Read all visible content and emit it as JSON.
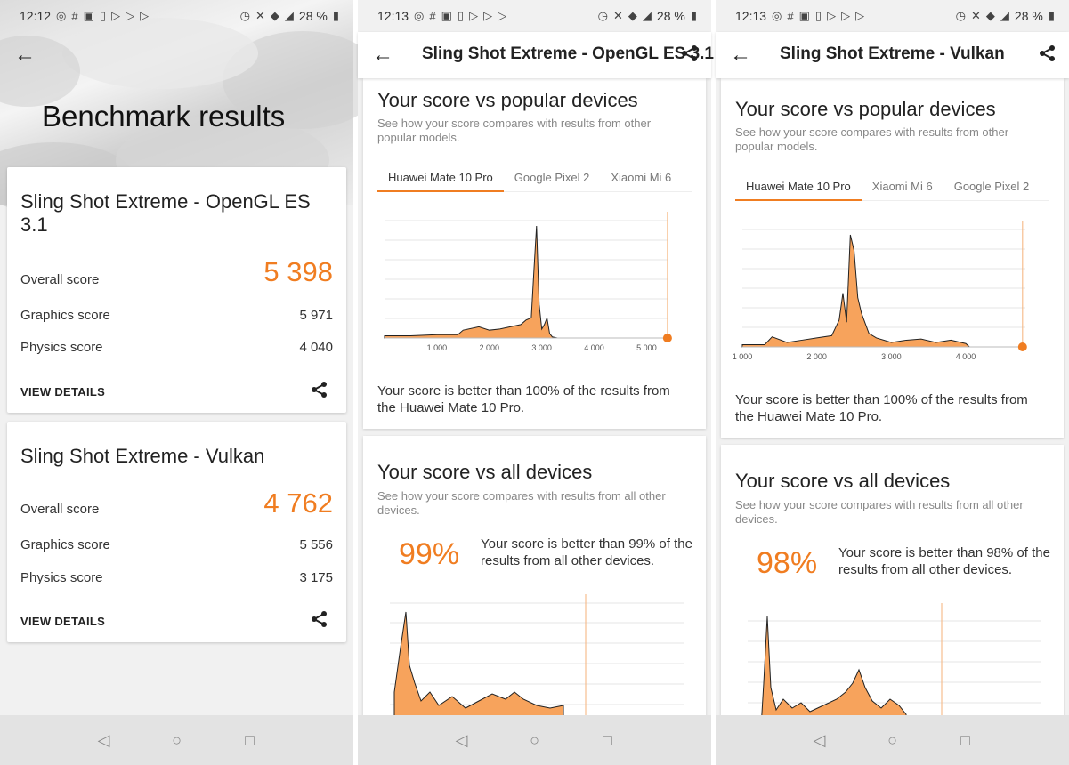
{
  "screens": [
    {
      "status": {
        "time": "12:12",
        "battery": "28 %"
      },
      "title": "Benchmark results",
      "cards": [
        {
          "title": "Sling Shot Extreme - OpenGL ES 3.1",
          "overall_label": "Overall score",
          "overall_value": "5 398",
          "graphics_label": "Graphics score",
          "graphics_value": "5 971",
          "physics_label": "Physics score",
          "physics_value": "4 040",
          "view_details": "VIEW DETAILS"
        },
        {
          "title": "Sling Shot Extreme - Vulkan",
          "overall_label": "Overall score",
          "overall_value": "4 762",
          "graphics_label": "Graphics score",
          "graphics_value": "5 556",
          "physics_label": "Physics score",
          "physics_value": "3 175",
          "view_details": "VIEW DETAILS"
        }
      ]
    },
    {
      "status": {
        "time": "12:13",
        "battery": "28 %"
      },
      "appbar_title": "Sling Shot Extreme - OpenGL ES 3.1",
      "popular": {
        "heading": "Your score vs popular devices",
        "subtitle": "See how your score compares with results from other popular models.",
        "tabs": [
          "Huawei Mate 10 Pro",
          "Google Pixel 2",
          "Xiaomi Mi 6"
        ],
        "active_tab": 0,
        "result": "Your score is better than 100% of the results from the Huawei Mate 10 Pro."
      },
      "all": {
        "heading": "Your score vs all devices",
        "subtitle": "See how your score compares with results from all other devices.",
        "percent": "99%",
        "result": "Your score is better than 99% of the results from all other devices."
      }
    },
    {
      "status": {
        "time": "12:13",
        "battery": "28 %"
      },
      "appbar_title": "Sling Shot Extreme - Vulkan",
      "popular": {
        "heading": "Your score vs popular devices",
        "subtitle": "See how your score compares with results from other popular models.",
        "tabs": [
          "Huawei Mate 10 Pro",
          "Xiaomi Mi 6",
          "Google Pixel 2"
        ],
        "active_tab": 0,
        "result": "Your score is better than 100% of the results from the Huawei Mate 10 Pro."
      },
      "all": {
        "heading": "Your score vs all devices",
        "subtitle": "See how your score compares with results from all other devices.",
        "percent": "98%",
        "result": "Your score is better than 98% of the results from all other devices."
      }
    }
  ],
  "chart_data": [
    {
      "type": "area",
      "x_ticks": [
        "1 000",
        "2 000",
        "3 000",
        "4 000",
        "5 000"
      ],
      "xlim": [
        0,
        5400
      ],
      "your_score": 5398,
      "x": [
        0,
        500,
        1000,
        1400,
        1500,
        1800,
        2000,
        2200,
        2400,
        2600,
        2700,
        2800,
        2850,
        2900,
        2950,
        3000,
        3050,
        3100,
        3150,
        3200,
        3300
      ],
      "y": [
        2,
        2,
        3,
        3,
        7,
        10,
        7,
        8,
        10,
        12,
        16,
        18,
        60,
        100,
        30,
        8,
        12,
        18,
        4,
        1,
        0
      ]
    },
    {
      "type": "area",
      "x_ticks": [
        "1 000",
        "2 000",
        "3 000",
        "4 000"
      ],
      "xlim": [
        1000,
        4800
      ],
      "your_score": 4762,
      "x": [
        1000,
        1300,
        1400,
        1600,
        1800,
        2000,
        2200,
        2250,
        2300,
        2350,
        2400,
        2450,
        2500,
        2550,
        2600,
        2700,
        2800,
        3000,
        3200,
        3400,
        3600,
        3800,
        4000,
        4050
      ],
      "y": [
        2,
        2,
        9,
        4,
        6,
        8,
        10,
        17,
        24,
        48,
        22,
        100,
        86,
        44,
        30,
        12,
        8,
        4,
        6,
        7,
        4,
        6,
        3,
        0
      ]
    }
  ]
}
